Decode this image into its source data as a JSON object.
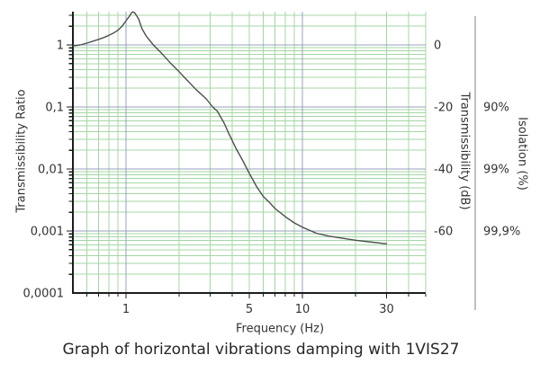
{
  "title": {
    "text": "Graph of horizontal vibrations damping with 1VIS27"
  },
  "axes": {
    "x": {
      "label": "Frequency (Hz)",
      "scale": "log",
      "min": 0.5,
      "max": 50,
      "tick_labels": [
        {
          "value": 1,
          "text": "1"
        },
        {
          "value": 5,
          "text": "5"
        },
        {
          "value": 10,
          "text": "10"
        },
        {
          "value": 30,
          "text": "30"
        }
      ]
    },
    "y_left": {
      "label": "Transmissibility Ratio",
      "scale": "log",
      "min": 0.0001,
      "max": 3.44,
      "tick_labels": [
        {
          "value": 1,
          "text": "1"
        },
        {
          "value": 0.1,
          "text": "0,1"
        },
        {
          "value": 0.01,
          "text": "0,01"
        },
        {
          "value": 0.001,
          "text": "0,001"
        },
        {
          "value": 0.0001,
          "text": "0,0001"
        }
      ]
    },
    "y_right_db": {
      "label": "Transmissibility (dB)",
      "tick_labels": [
        {
          "ratio": 1,
          "text": "0"
        },
        {
          "ratio": 0.1,
          "text": "-20"
        },
        {
          "ratio": 0.01,
          "text": "-40"
        },
        {
          "ratio": 0.001,
          "text": "-60"
        }
      ]
    },
    "y_right_isolation": {
      "label": "Isolation (%)",
      "tick_labels": [
        {
          "ratio": 0.1,
          "text": "90%"
        },
        {
          "ratio": 0.01,
          "text": "99%"
        },
        {
          "ratio": 0.001,
          "text": "99,9%"
        }
      ]
    }
  },
  "chart_data": {
    "type": "line",
    "title": "Graph of horizontal vibrations damping with 1VIS27",
    "xlabel": "Frequency (Hz)",
    "ylabel": "Transmissibility Ratio",
    "x_scale": "log",
    "y_scale": "log",
    "xlim": [
      0.5,
      50
    ],
    "ylim": [
      0.0001,
      3.44
    ],
    "grid": "log minor (green) + decade major (gray-blue)",
    "legend": "none",
    "resonance_peak": {
      "frequency_hz": 1.09,
      "transmissibility": 3.42
    },
    "series": [
      {
        "name": "transmissibility",
        "x": [
          0.5,
          0.55,
          0.6,
          0.65,
          0.7,
          0.75,
          0.8,
          0.85,
          0.9,
          0.95,
          1.0,
          1.05,
          1.07,
          1.09,
          1.12,
          1.15,
          1.18,
          1.23,
          1.3,
          1.43,
          1.6,
          1.8,
          2.0,
          2.25,
          2.5,
          2.85,
          3.1,
          3.3,
          3.6,
          3.8,
          4.2,
          4.6,
          5.0,
          5.5,
          6.0,
          6.5,
          7.0,
          8.0,
          9.0,
          10,
          12,
          14,
          17,
          20,
          25,
          30
        ],
        "y": [
          0.96,
          1.0,
          1.07,
          1.15,
          1.23,
          1.32,
          1.43,
          1.56,
          1.72,
          2.0,
          2.45,
          2.95,
          3.25,
          3.42,
          3.3,
          2.95,
          2.6,
          1.85,
          1.4,
          1.0,
          0.72,
          0.5,
          0.37,
          0.26,
          0.19,
          0.135,
          0.1,
          0.085,
          0.055,
          0.039,
          0.0215,
          0.0135,
          0.0085,
          0.0052,
          0.0036,
          0.0029,
          0.0023,
          0.0017,
          0.00135,
          0.00115,
          0.00092,
          0.00083,
          0.00076,
          0.00071,
          0.00066,
          0.00062
        ]
      }
    ]
  },
  "colors": {
    "background": "#ffffff",
    "grid_minor": "#a4d7a4",
    "grid_major": "#9aa0bc",
    "axis_line": "#1c1c1c",
    "curve": "#4f4f4f",
    "tick_text": "#333333",
    "title_text": "#262626",
    "separator_line": "#808080"
  }
}
